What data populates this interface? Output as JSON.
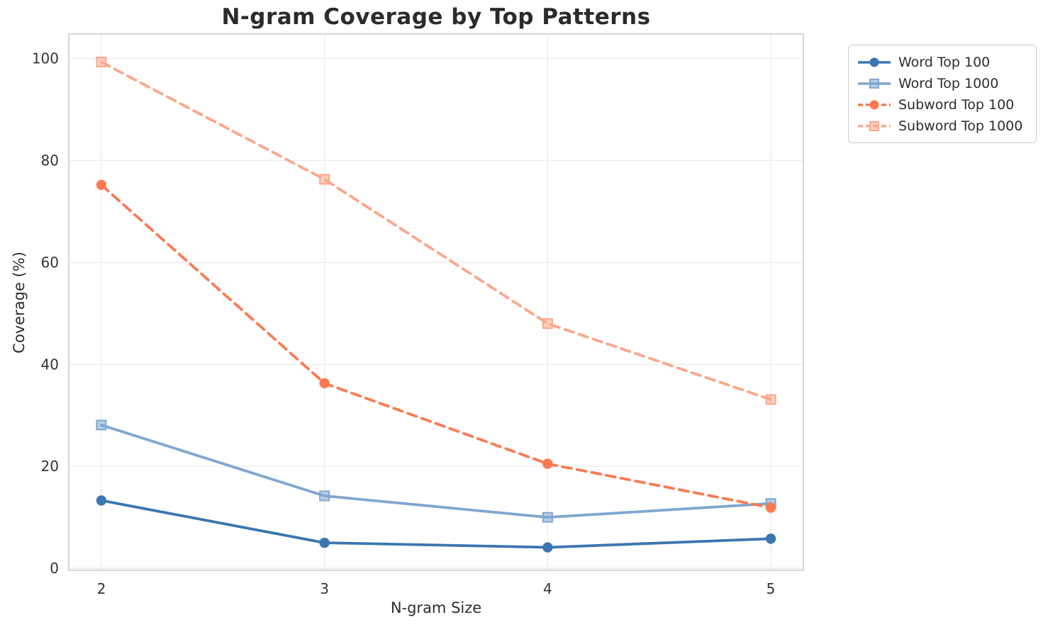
{
  "title": "N-gram Coverage by Top Patterns",
  "chart_data": {
    "type": "line",
    "title": "N-gram Coverage by Top Patterns",
    "xlabel": "N-gram Size",
    "ylabel": "Coverage (%)",
    "x": [
      2,
      3,
      4,
      5
    ],
    "xticks": [
      2,
      3,
      4,
      5
    ],
    "xtick_labels": [
      "2",
      "3",
      "4",
      "5"
    ],
    "yticks": [
      0,
      20,
      40,
      60,
      80,
      100
    ],
    "ytick_labels": [
      "0",
      "20",
      "40",
      "60",
      "80",
      "100"
    ],
    "xlim": [
      1.854,
      5.146
    ],
    "ylim": [
      -0.4,
      104.8
    ],
    "grid": true,
    "legend_position": "outside-top-right",
    "series": [
      {
        "name": "Word Top 100",
        "values": [
          13.3,
          5.0,
          4.1,
          5.8
        ],
        "color": "#3b76af",
        "marker": "circle",
        "dash": "solid"
      },
      {
        "name": "Word Top 1000",
        "values": [
          28.1,
          14.2,
          10.0,
          12.7
        ],
        "color": "#7fa7d0",
        "marker": "square",
        "dash": "solid"
      },
      {
        "name": "Subword Top 100",
        "values": [
          75.2,
          36.3,
          20.5,
          11.9
        ],
        "color": "#fb7a51",
        "marker": "circle",
        "dash": "dashed"
      },
      {
        "name": "Subword Top 1000",
        "values": [
          99.3,
          76.3,
          48.0,
          33.1
        ],
        "color": "#fca78a",
        "marker": "square",
        "dash": "dashed"
      }
    ]
  }
}
